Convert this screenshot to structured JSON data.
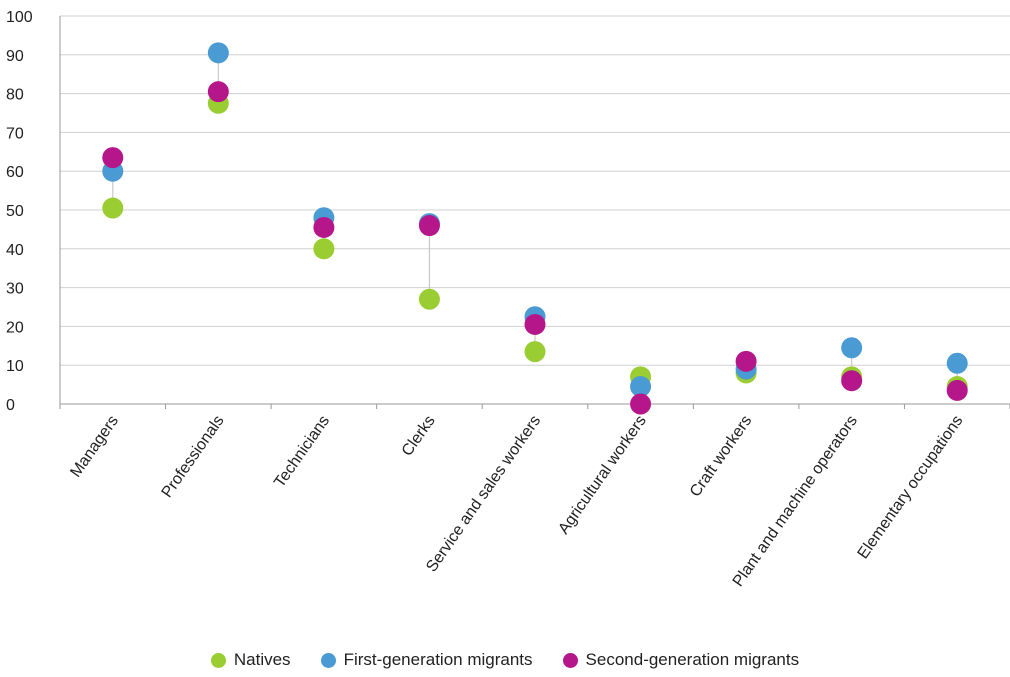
{
  "chart_data": {
    "type": "scatter",
    "title": "",
    "xlabel": "",
    "ylabel": "",
    "ylim": [
      0,
      100
    ],
    "yticks": [
      "0",
      "10",
      "20",
      "30",
      "40",
      "50",
      "60",
      "70",
      "80",
      "90",
      "100"
    ],
    "grid": true,
    "legend_position": "bottom",
    "categories": [
      "Managers",
      "Professionals",
      "Technicians",
      "Clerks",
      "Service and sales workers",
      "Agricultural workers",
      "Craft workers",
      "Plant and machine operators",
      "Elementary occupations"
    ],
    "series": [
      {
        "name": "Natives",
        "color": "#9acd32",
        "values": [
          50.5,
          77.5,
          40,
          27,
          13.5,
          7,
          8,
          7,
          4.5
        ]
      },
      {
        "name": "First-generation migrants",
        "color": "#4a9ad4",
        "values": [
          60,
          90.5,
          48,
          46.5,
          22.5,
          4.5,
          9,
          14.5,
          10.5
        ]
      },
      {
        "name": "Second-generation migrants",
        "color": "#b5168a",
        "values": [
          63.5,
          80.5,
          45.5,
          46,
          20.5,
          0,
          11,
          6,
          3.5
        ]
      }
    ]
  }
}
